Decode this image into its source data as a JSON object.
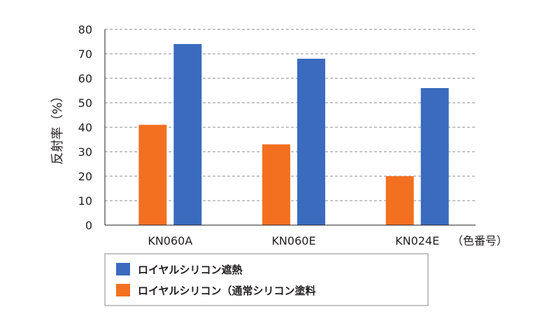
{
  "chart_data": {
    "type": "bar",
    "categories": [
      "KN060A",
      "KN060E",
      "KN024E"
    ],
    "series": [
      {
        "name": "ロイヤルシリコン（通常シリコン塗料",
        "color": "#f37021",
        "values": [
          41,
          33,
          20
        ]
      },
      {
        "name": "ロイヤルシリコン遮熱",
        "color": "#3a6bbf",
        "values": [
          74,
          68,
          56
        ]
      }
    ],
    "ylabel": "反射率（%）",
    "xlabel_note": "（色番号）",
    "ylim": [
      0,
      80
    ],
    "yticks": [
      "0",
      "10",
      "20",
      "30",
      "40",
      "50",
      "60",
      "70",
      "80"
    ],
    "grid": true,
    "legend_position": "bottom"
  }
}
